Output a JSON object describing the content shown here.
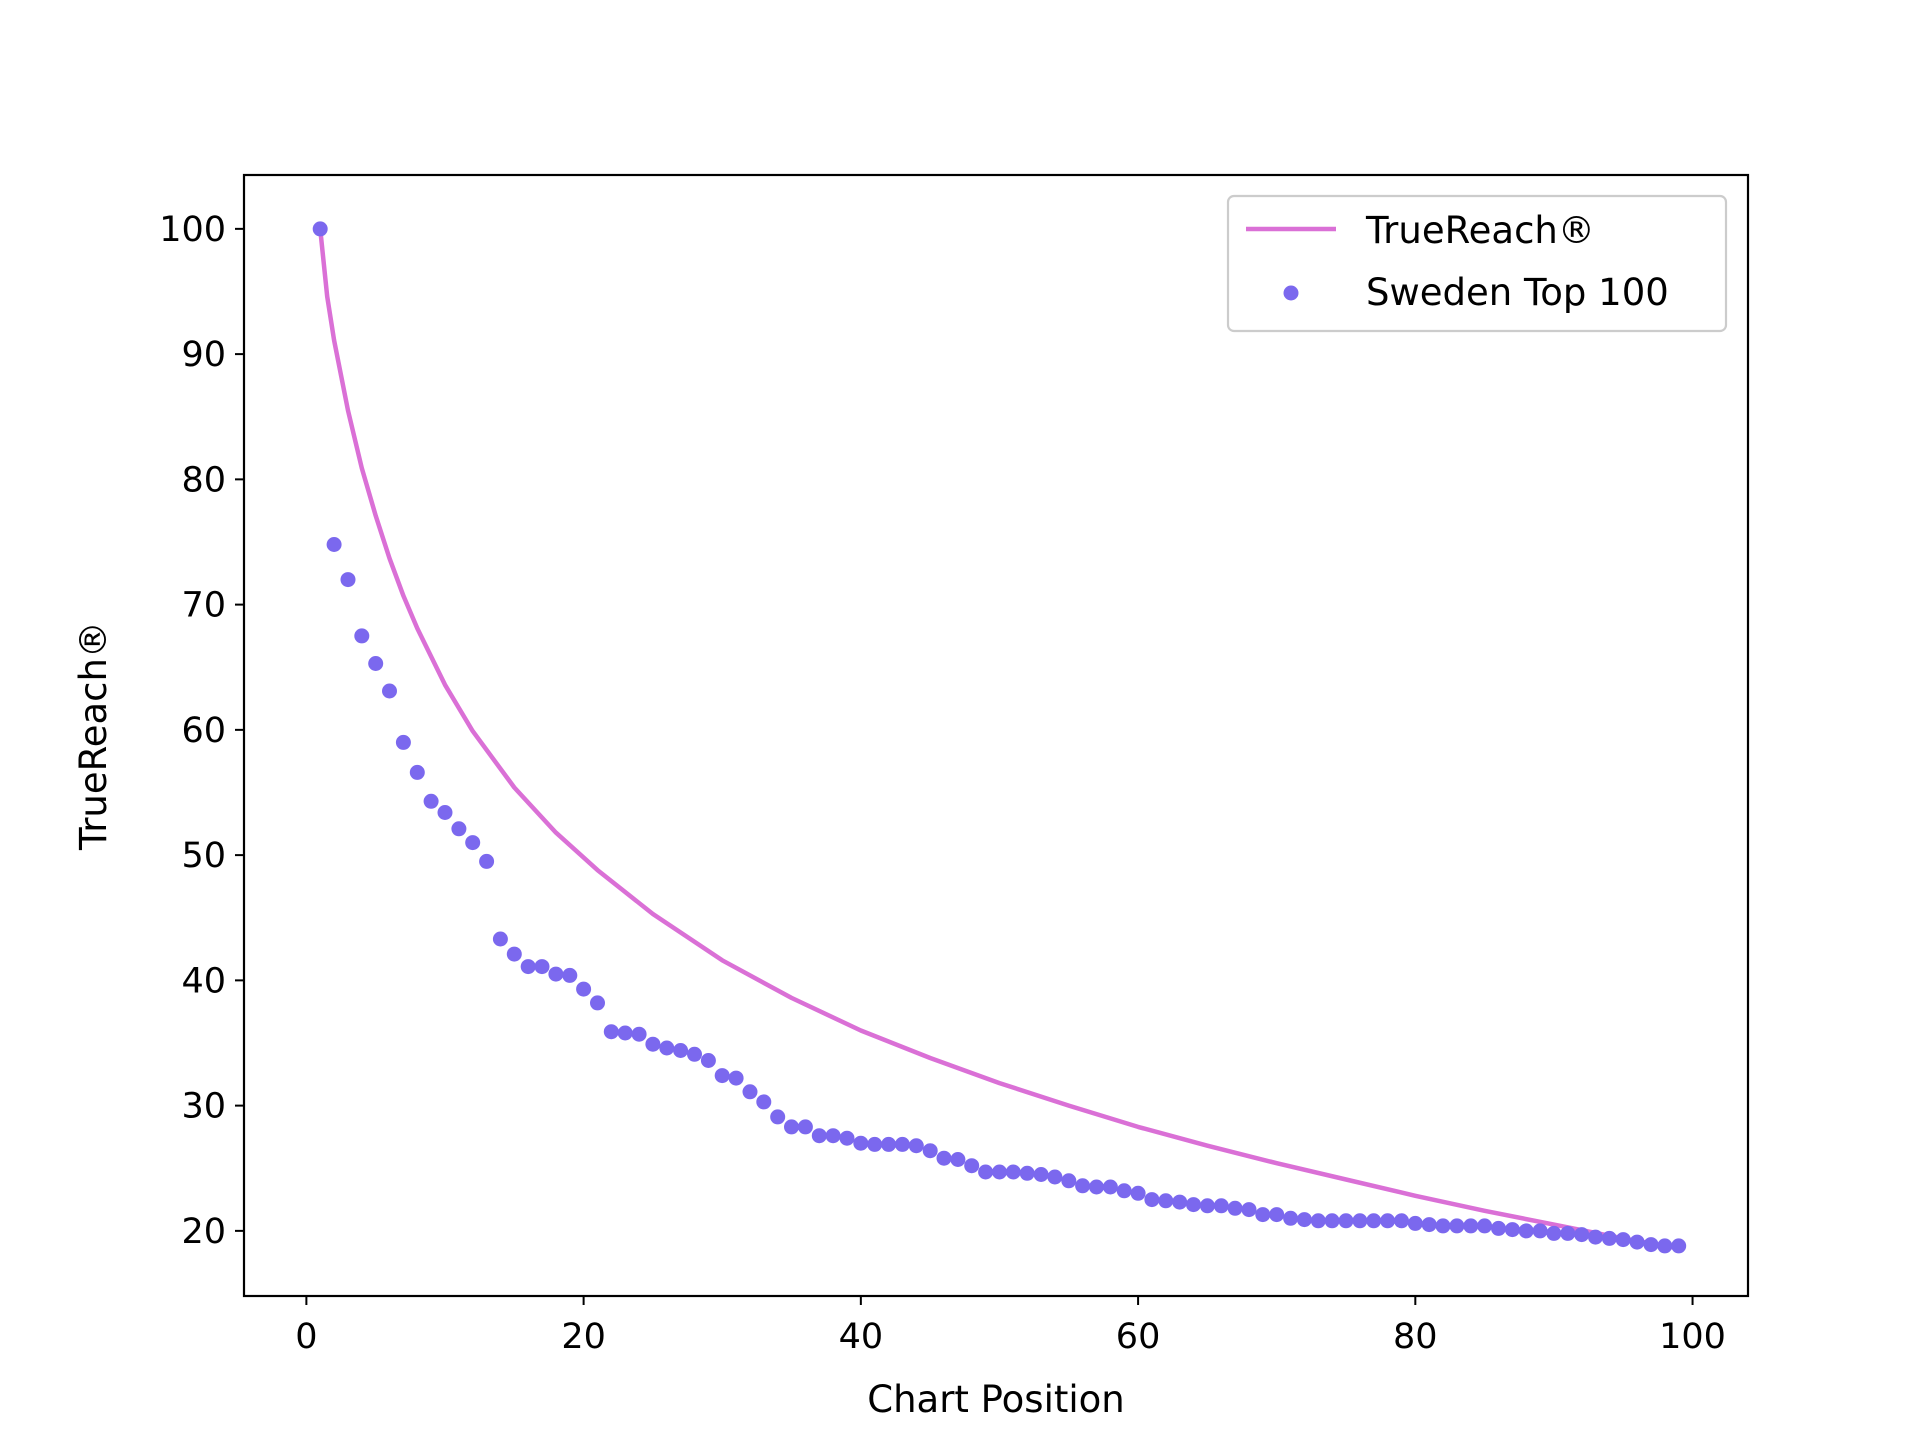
{
  "chart_data": {
    "type": "scatter",
    "xlabel": "Chart Position",
    "ylabel": "TrueReach®",
    "xlim": [
      -4.5,
      104
    ],
    "ylim": [
      14.8,
      104.3
    ],
    "xticks": [
      0,
      20,
      40,
      60,
      80,
      100
    ],
    "yticks": [
      20,
      30,
      40,
      50,
      60,
      70,
      80,
      90,
      100
    ],
    "grid": false,
    "legend_position": "top-right",
    "colors": {
      "line": "#da70d6",
      "points": "#7b68ee"
    },
    "series": [
      {
        "name": "TrueReach®",
        "kind": "line",
        "x": [
          1,
          1.5,
          2,
          3,
          4,
          5,
          6,
          7,
          8,
          10,
          12,
          15,
          18,
          21,
          25,
          30,
          35,
          40,
          45,
          50,
          55,
          60,
          65,
          70,
          75,
          80,
          85,
          90,
          95,
          99
        ],
        "y": [
          100,
          94.6,
          91.1,
          85.5,
          80.9,
          77.1,
          73.7,
          70.7,
          68.1,
          63.6,
          59.9,
          55.4,
          51.8,
          48.8,
          45.3,
          41.6,
          38.6,
          36.0,
          33.8,
          31.8,
          30.0,
          28.3,
          26.8,
          25.4,
          24.1,
          22.8,
          21.6,
          20.5,
          19.4,
          18.6
        ]
      },
      {
        "name": "Sweden Top 100",
        "kind": "scatter",
        "x": [
          1,
          2,
          3,
          4,
          5,
          6,
          7,
          8,
          9,
          10,
          11,
          12,
          13,
          14,
          15,
          16,
          17,
          18,
          19,
          20,
          21,
          22,
          23,
          24,
          25,
          26,
          27,
          28,
          29,
          30,
          31,
          32,
          33,
          34,
          35,
          36,
          37,
          38,
          39,
          40,
          41,
          42,
          43,
          44,
          45,
          46,
          47,
          48,
          49,
          50,
          51,
          52,
          53,
          54,
          55,
          56,
          57,
          58,
          59,
          60,
          61,
          62,
          63,
          64,
          65,
          66,
          67,
          68,
          69,
          70,
          71,
          72,
          73,
          74,
          75,
          76,
          77,
          78,
          79,
          80,
          81,
          82,
          83,
          84,
          85,
          86,
          87,
          88,
          89,
          90,
          91,
          92,
          93,
          94,
          95,
          96,
          97,
          98,
          99
        ],
        "y": [
          100,
          74.8,
          72,
          67.5,
          65.3,
          63.1,
          59,
          56.6,
          54.3,
          53.4,
          52.1,
          51,
          49.5,
          43.3,
          42.1,
          41.1,
          41.1,
          40.5,
          40.4,
          39.3,
          38.2,
          35.9,
          35.8,
          35.7,
          34.9,
          34.6,
          34.4,
          34.1,
          33.6,
          32.4,
          32.2,
          31.1,
          30.3,
          29.1,
          28.3,
          28.3,
          27.6,
          27.6,
          27.4,
          27,
          26.9,
          26.9,
          26.9,
          26.8,
          26.4,
          25.8,
          25.7,
          25.2,
          24.7,
          24.7,
          24.7,
          24.6,
          24.5,
          24.3,
          24,
          23.6,
          23.5,
          23.5,
          23.2,
          23,
          22.5,
          22.4,
          22.3,
          22.1,
          22,
          22,
          21.8,
          21.7,
          21.3,
          21.3,
          21,
          20.9,
          20.8,
          20.8,
          20.8,
          20.8,
          20.8,
          20.8,
          20.8,
          20.6,
          20.5,
          20.4,
          20.4,
          20.4,
          20.4,
          20.2,
          20.1,
          20,
          20,
          19.8,
          19.8,
          19.7,
          19.5,
          19.4,
          19.3,
          19.1,
          18.9,
          18.8,
          18.8
        ]
      }
    ]
  }
}
